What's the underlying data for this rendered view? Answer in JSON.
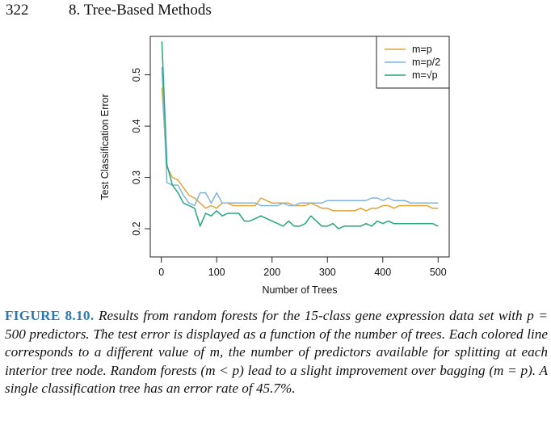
{
  "header": {
    "page_number": "322",
    "chapter_title": "8.  Tree-Based Methods"
  },
  "caption": {
    "label": "FIGURE 8.10.",
    "text": "Results from random forests for the 15-class gene expression data set with p = 500 predictors. The test error is displayed as a function of the number of trees. Each colored line corresponds to a different value of m, the number of predictors available for splitting at each interior tree node. Random forests (m < p) lead to a slight improvement over bagging (m = p). A single classification tree has an error rate of 45.7%."
  },
  "colors": {
    "m_p": "#e0a33a",
    "m_p2": "#7fb5dd",
    "m_sqrtp": "#26a67e"
  },
  "chart_data": {
    "type": "line",
    "xlabel": "Number of Trees",
    "ylabel": "Test Classification Error",
    "xlim": [
      -20,
      520
    ],
    "ylim": [
      0.145,
      0.575
    ],
    "xticks": [
      0,
      100,
      200,
      300,
      400,
      500
    ],
    "xtick_labels": [
      "0",
      "100",
      "200",
      "300",
      "400",
      "500"
    ],
    "yticks": [
      0.2,
      0.3,
      0.4,
      0.5
    ],
    "ytick_labels": [
      "0.2",
      "0.3",
      "0.4",
      "0.5"
    ],
    "legend_position": "top-right",
    "x": [
      1,
      10,
      20,
      30,
      40,
      50,
      60,
      70,
      80,
      90,
      100,
      110,
      120,
      130,
      140,
      150,
      160,
      170,
      180,
      190,
      200,
      210,
      220,
      230,
      240,
      250,
      260,
      270,
      280,
      290,
      300,
      310,
      320,
      330,
      340,
      350,
      360,
      370,
      380,
      390,
      400,
      410,
      420,
      430,
      440,
      450,
      460,
      470,
      480,
      490,
      500
    ],
    "series": [
      {
        "name": "m=p",
        "color": "#e0a33a",
        "values": [
          0.475,
          0.32,
          0.3,
          0.295,
          0.28,
          0.265,
          0.26,
          0.25,
          0.24,
          0.245,
          0.24,
          0.25,
          0.25,
          0.245,
          0.245,
          0.245,
          0.245,
          0.245,
          0.26,
          0.255,
          0.25,
          0.25,
          0.25,
          0.25,
          0.245,
          0.245,
          0.245,
          0.25,
          0.245,
          0.24,
          0.24,
          0.235,
          0.235,
          0.235,
          0.235,
          0.235,
          0.24,
          0.235,
          0.24,
          0.24,
          0.245,
          0.245,
          0.24,
          0.245,
          0.245,
          0.245,
          0.245,
          0.245,
          0.245,
          0.24,
          0.24
        ]
      },
      {
        "name": "m=p/2",
        "color": "#7fb5dd",
        "values": [
          0.515,
          0.29,
          0.285,
          0.285,
          0.265,
          0.25,
          0.245,
          0.27,
          0.27,
          0.25,
          0.27,
          0.25,
          0.25,
          0.25,
          0.25,
          0.25,
          0.25,
          0.25,
          0.245,
          0.245,
          0.245,
          0.245,
          0.25,
          0.245,
          0.245,
          0.25,
          0.25,
          0.25,
          0.25,
          0.25,
          0.255,
          0.255,
          0.255,
          0.255,
          0.255,
          0.255,
          0.255,
          0.255,
          0.26,
          0.26,
          0.255,
          0.26,
          0.255,
          0.255,
          0.255,
          0.25,
          0.25,
          0.25,
          0.25,
          0.25,
          0.25
        ]
      },
      {
        "name": "m=√p",
        "color": "#26a67e",
        "values": [
          0.565,
          0.325,
          0.285,
          0.27,
          0.25,
          0.245,
          0.24,
          0.205,
          0.23,
          0.225,
          0.235,
          0.225,
          0.23,
          0.23,
          0.23,
          0.215,
          0.215,
          0.22,
          0.225,
          0.22,
          0.215,
          0.21,
          0.205,
          0.215,
          0.205,
          0.205,
          0.21,
          0.225,
          0.215,
          0.205,
          0.205,
          0.21,
          0.2,
          0.205,
          0.205,
          0.205,
          0.205,
          0.21,
          0.205,
          0.215,
          0.21,
          0.215,
          0.21,
          0.21,
          0.21,
          0.21,
          0.21,
          0.21,
          0.21,
          0.21,
          0.205
        ]
      }
    ]
  }
}
